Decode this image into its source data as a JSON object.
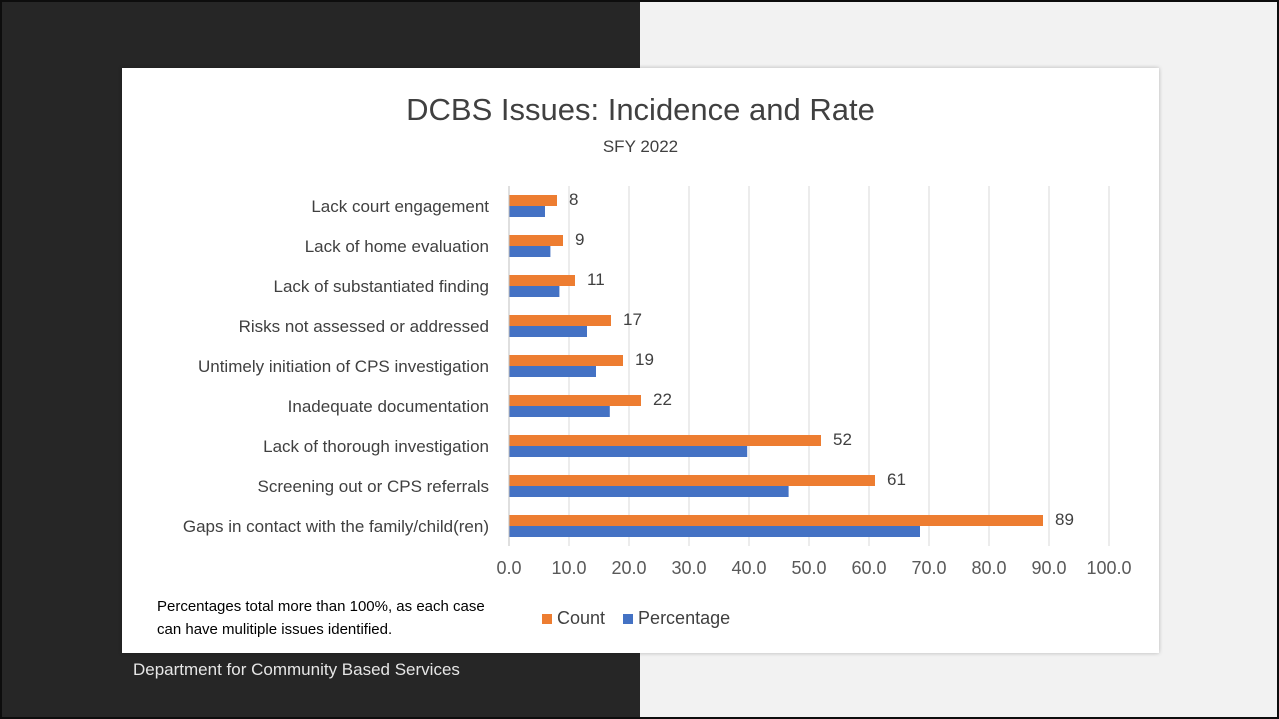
{
  "footer": {
    "org": "Department for Community Based Services"
  },
  "chart_data": {
    "type": "bar",
    "orientation": "horizontal",
    "title": "DCBS Issues: Incidence and Rate",
    "subtitle": "SFY 2022",
    "categories": [
      "Lack court engagement",
      "Lack of home evaluation",
      "Lack of substantiated finding",
      "Risks not assessed or addressed",
      "Untimely initiation of CPS investigation",
      "Inadequate documentation",
      "Lack of thorough investigation",
      "Screening out or CPS referrals",
      "Gaps in contact with the family/child(ren)"
    ],
    "series": [
      {
        "name": "Count",
        "color": "#ed7d31",
        "values": [
          8,
          9,
          11,
          17,
          19,
          22,
          52,
          61,
          89
        ],
        "data_labels": [
          "8",
          "9",
          "11",
          "17",
          "19",
          "22",
          "52",
          "61",
          "89"
        ]
      },
      {
        "name": "Percentage",
        "color": "#4472c4",
        "values": [
          6.0,
          6.9,
          8.4,
          13.0,
          14.5,
          16.8,
          39.7,
          46.6,
          68.5
        ]
      }
    ],
    "xlim": [
      0,
      100
    ],
    "x_ticks": [
      "0.0",
      "10.0",
      "20.0",
      "30.0",
      "40.0",
      "50.0",
      "60.0",
      "70.0",
      "80.0",
      "90.0",
      "100.0"
    ],
    "grid": "vertical",
    "legend_position": "bottom",
    "footnote": "Percentages total more than 100%, as each case can have mulitiple issues identified."
  }
}
